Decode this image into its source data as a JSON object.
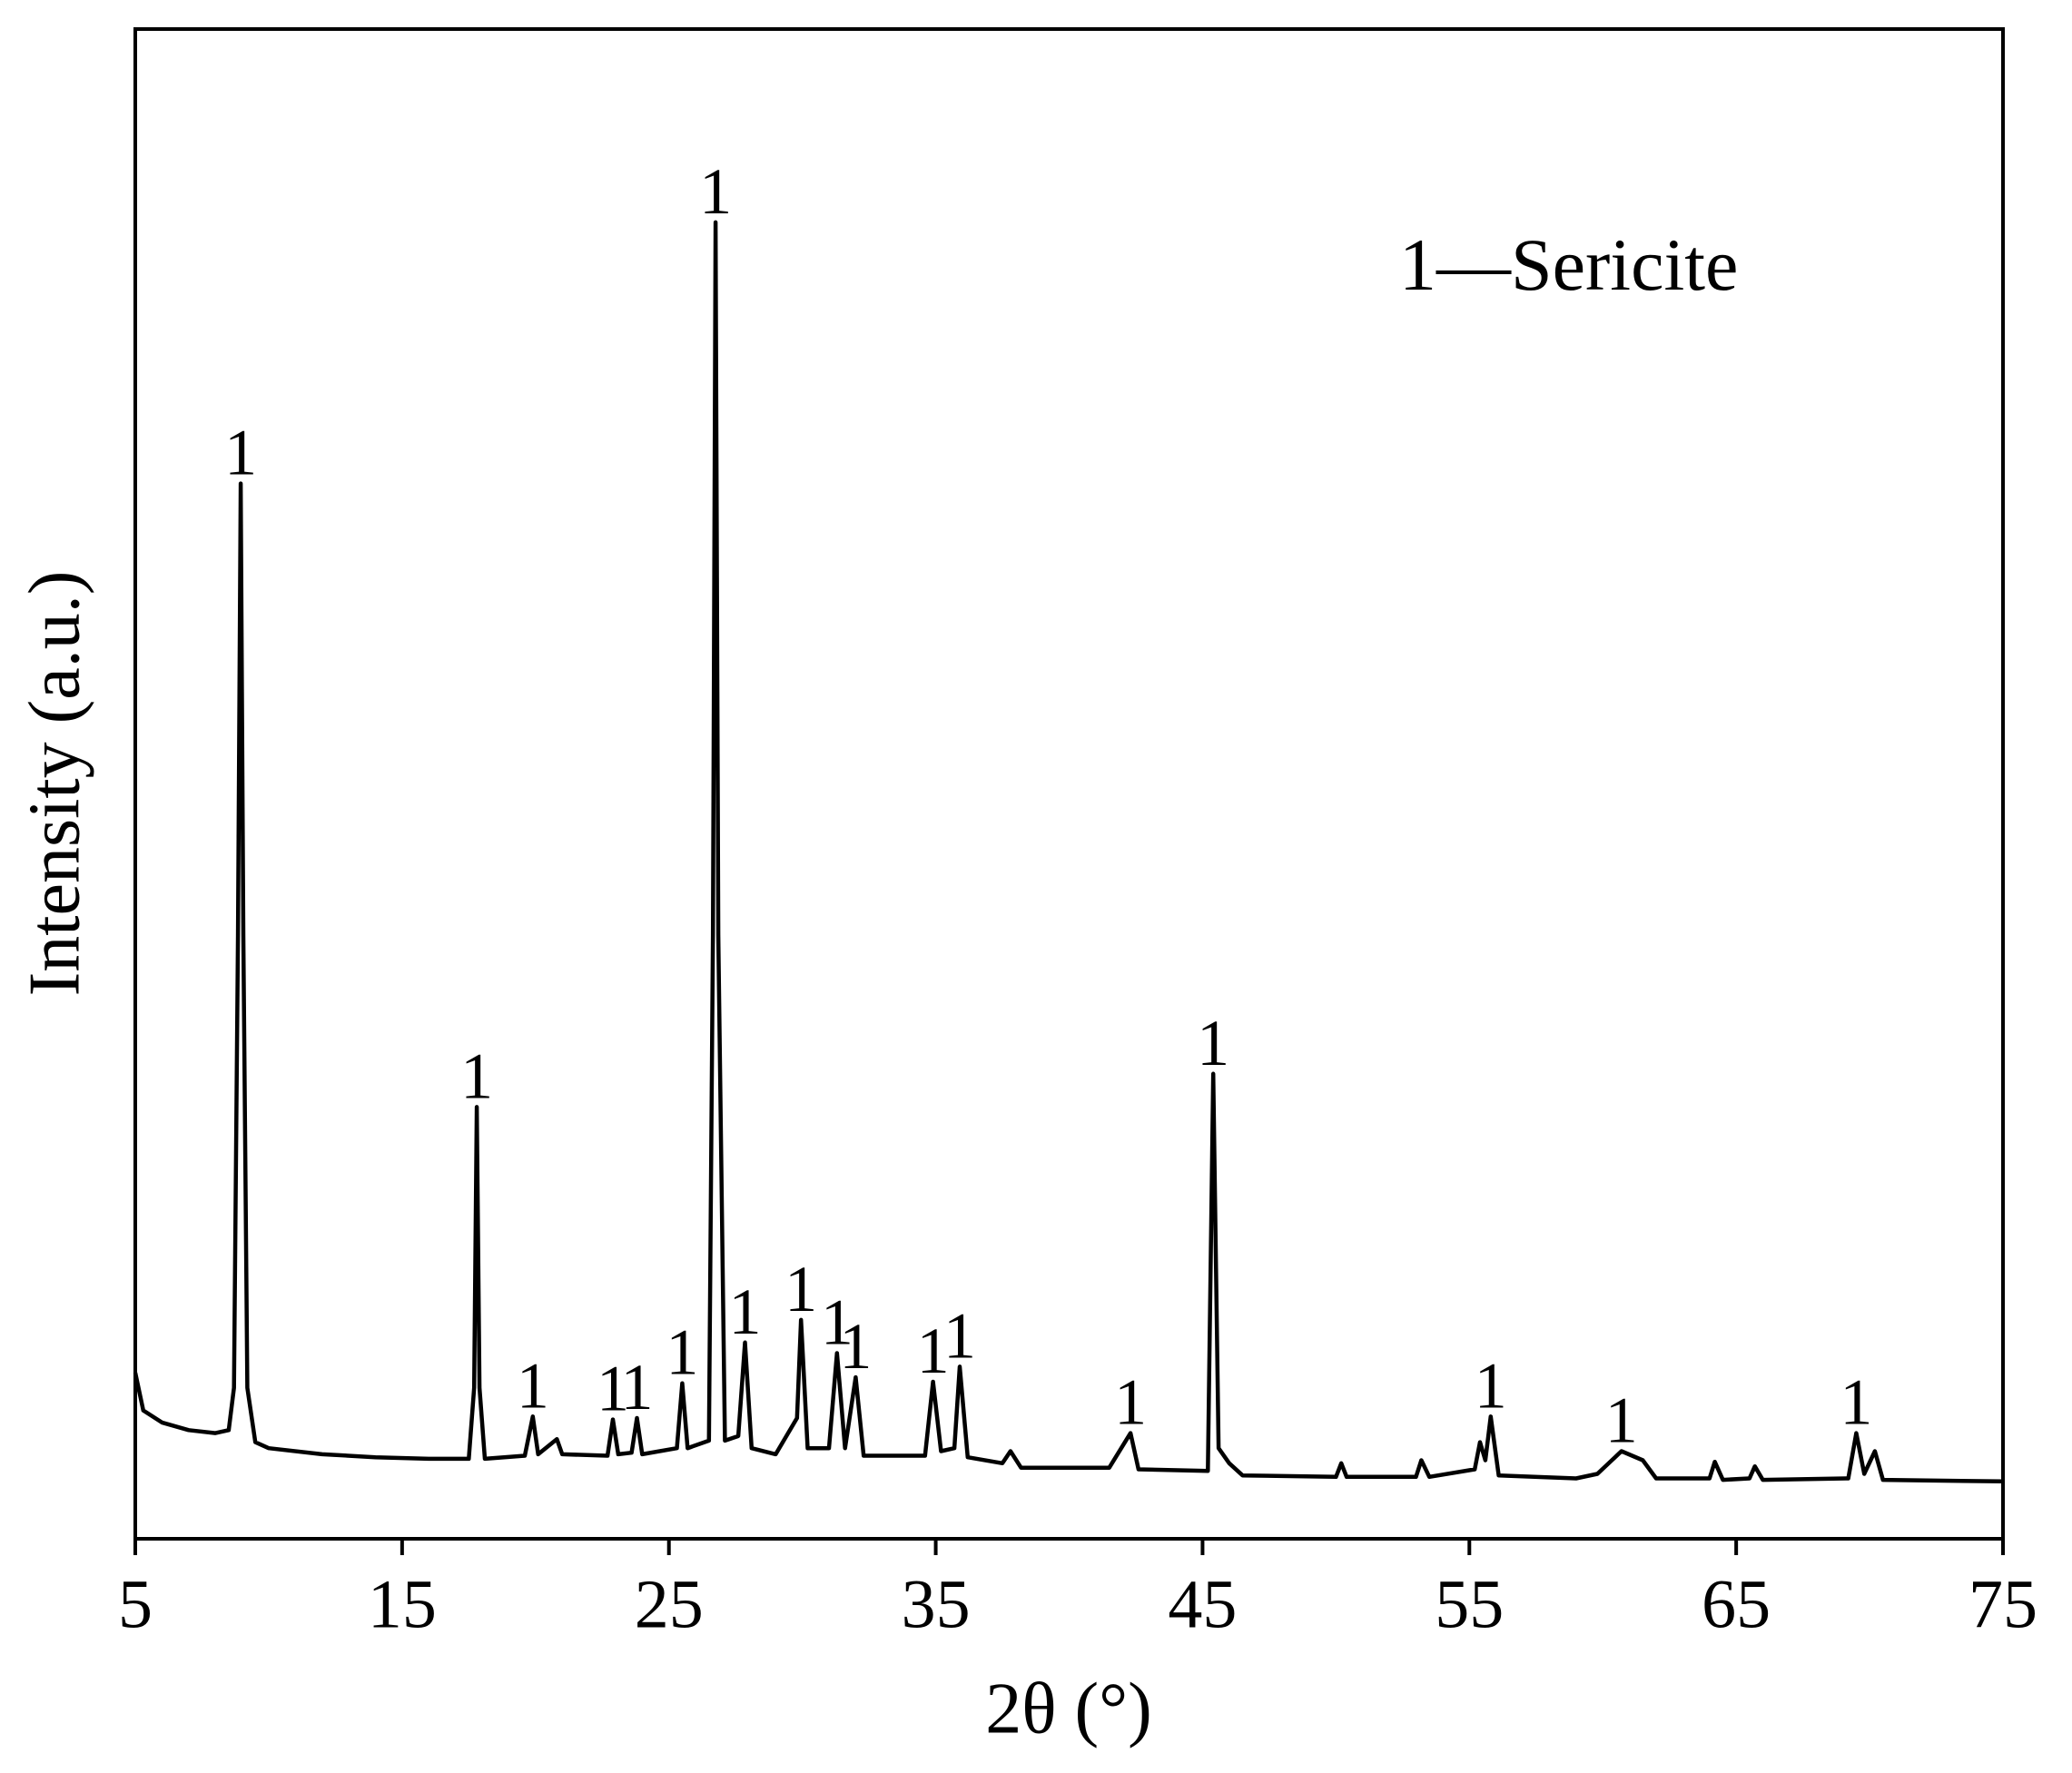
{
  "chart_data": {
    "type": "line",
    "title": "1—Sericite",
    "x_label": "2θ (°)",
    "y_label": "Intensity (a.u.)",
    "xlim": [
      5,
      75
    ],
    "ylim": [
      0,
      100
    ],
    "xticks": [
      5,
      15,
      25,
      35,
      45,
      55,
      65,
      75
    ],
    "grid": false,
    "series": [
      {
        "name": "Sericite",
        "color": "#000000",
        "x": [
          5,
          5.3,
          6,
          7,
          8,
          8.5,
          8.7,
          8.85,
          8.95,
          9.05,
          9.2,
          9.5,
          10,
          12,
          14,
          16,
          17.5,
          17.7,
          17.8,
          17.9,
          18.1,
          19.6,
          19.9,
          20.1,
          20.8,
          21.0,
          22.7,
          22.9,
          23.1,
          23.6,
          23.8,
          24.0,
          25.3,
          25.5,
          25.7,
          26.5,
          26.65,
          26.75,
          26.85,
          27.1,
          27.6,
          27.85,
          28.1,
          29.0,
          29.8,
          29.95,
          30.2,
          31.0,
          31.3,
          31.6,
          32.0,
          32.3,
          34.6,
          34.9,
          35.2,
          35.7,
          35.9,
          36.2,
          37.5,
          37.8,
          38.2,
          41.5,
          42.3,
          42.6,
          45.2,
          45.4,
          45.6,
          46,
          46.5,
          50,
          50.2,
          50.4,
          53,
          53.2,
          53.5,
          55.2,
          55.4,
          55.6,
          55.8,
          56.1,
          59,
          59.8,
          60.7,
          61.5,
          62,
          64,
          64.2,
          64.5,
          65.5,
          65.7,
          66,
          69.2,
          69.5,
          69.8,
          70.2,
          70.5,
          75
        ],
        "values": [
          11,
          8.5,
          7.7,
          7.2,
          7.0,
          7.2,
          10,
          40,
          69.9,
          40,
          10,
          6.4,
          6.0,
          5.6,
          5.4,
          5.3,
          5.3,
          10,
          28.6,
          10,
          5.3,
          5.5,
          8.1,
          5.6,
          6.6,
          5.6,
          5.5,
          7.9,
          5.6,
          5.7,
          8.0,
          5.6,
          6.0,
          10.3,
          6.0,
          6.5,
          40,
          87.2,
          40,
          6.5,
          6.8,
          13.0,
          6.0,
          5.6,
          8,
          14.5,
          6.0,
          6.0,
          12.3,
          6.0,
          10.7,
          5.5,
          5.5,
          10.4,
          5.8,
          6.0,
          11.4,
          5.4,
          5.0,
          5.8,
          4.7,
          4.7,
          7.0,
          4.6,
          4.5,
          30.8,
          6,
          5,
          4.2,
          4.1,
          5.0,
          4.1,
          4.1,
          5.2,
          4.1,
          4.6,
          6.4,
          5.2,
          8.1,
          4.2,
          4.0,
          4.3,
          5.8,
          5.2,
          4.0,
          4.0,
          5.1,
          3.9,
          4.0,
          4.8,
          3.9,
          4.0,
          7.0,
          4.3,
          5.8,
          3.9,
          3.8
        ]
      }
    ],
    "annotations": [
      {
        "text": "1",
        "x": 8.95
      },
      {
        "text": "1",
        "x": 17.8
      },
      {
        "text": "1",
        "x": 19.9
      },
      {
        "text": "1",
        "x": 22.9
      },
      {
        "text": "1",
        "x": 23.8
      },
      {
        "text": "1",
        "x": 25.5
      },
      {
        "text": "1",
        "x": 26.75
      },
      {
        "text": "1",
        "x": 27.85
      },
      {
        "text": "1",
        "x": 29.95
      },
      {
        "text": "1",
        "x": 31.3
      },
      {
        "text": "1",
        "x": 32.0
      },
      {
        "text": "1",
        "x": 34.9
      },
      {
        "text": "1",
        "x": 35.9
      },
      {
        "text": "1",
        "x": 42.3
      },
      {
        "text": "1",
        "x": 45.4
      },
      {
        "text": "1",
        "x": 55.8
      },
      {
        "text": "1",
        "x": 60.7
      },
      {
        "text": "1",
        "x": 69.5
      }
    ]
  }
}
